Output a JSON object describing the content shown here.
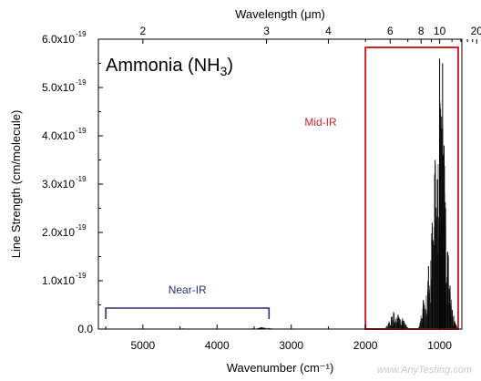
{
  "chart_data": {
    "type": "line",
    "title": "Ammonia (NH₃)",
    "xlabel": "Wavenumber (cm⁻¹)",
    "ylabel": "Line Strength (cm/molecule)",
    "top_xlabel": "Wavelength (μm)",
    "xlim": [
      5600,
      700
    ],
    "ylim": [
      0,
      6e-19
    ],
    "x_ticks": [
      {
        "value": 5000,
        "label": "5000"
      },
      {
        "value": 4000,
        "label": "4000"
      },
      {
        "value": 3000,
        "label": "3000"
      },
      {
        "value": 2000,
        "label": "2000"
      },
      {
        "value": 1000,
        "label": "1000"
      }
    ],
    "y_ticks": [
      {
        "value": 0.0,
        "label": "0.0"
      },
      {
        "value": 1e-19,
        "label": "1.0x10",
        "exp": "-19"
      },
      {
        "value": 2e-19,
        "label": "2.0x10",
        "exp": "-19"
      },
      {
        "value": 3e-19,
        "label": "3.0x10",
        "exp": "-19"
      },
      {
        "value": 4e-19,
        "label": "4.0x10",
        "exp": "-19"
      },
      {
        "value": 5e-19,
        "label": "5.0x10",
        "exp": "-19"
      },
      {
        "value": 6e-19,
        "label": "6.0x10",
        "exp": "-19"
      }
    ],
    "top_ticks": [
      {
        "value": 2,
        "label": "2"
      },
      {
        "value": 3,
        "label": "3"
      },
      {
        "value": 4,
        "label": "4"
      },
      {
        "value": 6,
        "label": "6"
      },
      {
        "value": 8,
        "label": "8"
      },
      {
        "value": 10,
        "label": "10"
      },
      {
        "value": 20,
        "label": "20"
      }
    ],
    "top_minor_ticks": [
      5,
      7,
      9,
      12,
      14,
      16,
      18
    ],
    "series": [
      {
        "x": [
          5150,
          5050,
          4980,
          4600,
          4450,
          4350,
          3500,
          3400,
          3300,
          1650,
          1620,
          1560,
          1500,
          1220,
          1150,
          1100,
          1060,
          1030,
          1000,
          980,
          960,
          940,
          920,
          890,
          860,
          830,
          800
        ],
        "y": [
          6e-22,
          1.2e-21,
          8e-22,
          7e-22,
          1.2e-21,
          9e-22,
          1.5e-21,
          4e-21,
          2e-21,
          2.5e-20,
          3.5e-20,
          3e-20,
          2.2e-20,
          6e-20,
          1.3e-19,
          2.2e-19,
          3.5e-19,
          3.1e-19,
          5.6e-19,
          4.4e-19,
          5.5e-19,
          3.8e-19,
          2.5e-19,
          1.6e-19,
          9e-20,
          4e-20,
          1.5e-20
        ]
      }
    ],
    "regions": [
      {
        "name": "Near-IR",
        "from": 5500,
        "to": 3300,
        "color": "#27327f"
      },
      {
        "name": "Mid-IR",
        "from": 2000,
        "to": 750,
        "color": "#c4282c"
      }
    ],
    "grid": false,
    "legend": "none"
  }
}
